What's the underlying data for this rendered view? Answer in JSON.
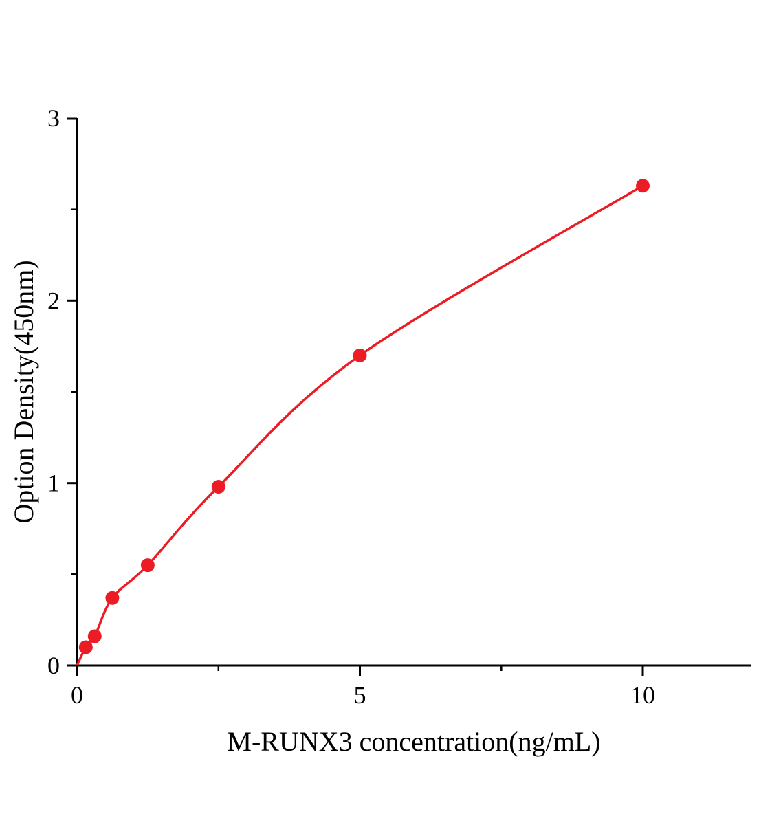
{
  "chart_data": {
    "type": "scatter",
    "title": "",
    "xlabel": "M-RUNX3 concentration(ng/mL)",
    "ylabel": "Option Density(450nm)",
    "x": [
      0.156,
      0.313,
      0.625,
      1.25,
      2.5,
      5,
      10
    ],
    "y": [
      0.1,
      0.16,
      0.37,
      0.55,
      0.98,
      1.7,
      2.63
    ],
    "curve_start": [
      0,
      0
    ],
    "xlim": [
      0,
      11.9
    ],
    "ylim": [
      0,
      3
    ],
    "x_major_ticks": [
      0,
      5,
      10
    ],
    "x_major_tick_labels": [
      "0",
      "5",
      "10"
    ],
    "x_minor_ticks": [
      2.5,
      7.5
    ],
    "y_major_ticks": [
      0,
      1,
      2,
      3
    ],
    "y_major_tick_labels": [
      "0",
      "1",
      "2",
      "3"
    ],
    "y_minor_ticks": [
      0.5,
      1.5,
      2.5
    ],
    "grid": false,
    "legend": null,
    "point_color": "#ec1c24",
    "line_color": "#ec1c24",
    "axis_color": "#000000",
    "background_color": "#ffffff"
  }
}
